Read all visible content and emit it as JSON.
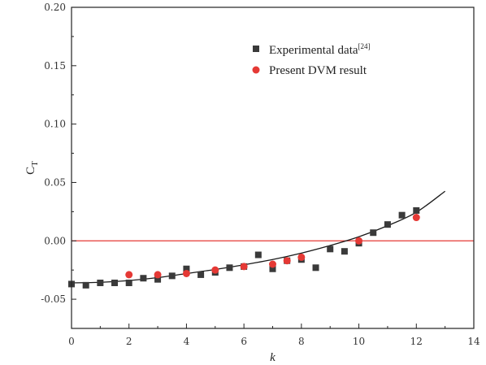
{
  "chart_data": {
    "type": "scatter",
    "title": "",
    "xlabel": "k",
    "ylabel": "C",
    "ylabel_sub": "T",
    "xlim": [
      0,
      14
    ],
    "ylim": [
      -0.075,
      0.2
    ],
    "xticks": [
      "0",
      "2",
      "4",
      "6",
      "8",
      "10",
      "12",
      "14"
    ],
    "yticks": [
      "-0.05",
      "0.00",
      "0.05",
      "0.10",
      "0.15",
      "0.20"
    ],
    "grid": false,
    "legend_position": "top-right",
    "reference_line": {
      "y": 0,
      "color": "#e53935"
    },
    "series": [
      {
        "name": "Experimental data",
        "name_sup": "[24]",
        "marker": "square",
        "color": "#3a3a3a",
        "points": [
          [
            0,
            -0.037
          ],
          [
            0.5,
            -0.038
          ],
          [
            1,
            -0.036
          ],
          [
            1.5,
            -0.036
          ],
          [
            2,
            -0.036
          ],
          [
            2.5,
            -0.032
          ],
          [
            3,
            -0.033
          ],
          [
            3.5,
            -0.03
          ],
          [
            4,
            -0.024
          ],
          [
            4.5,
            -0.029
          ],
          [
            5,
            -0.027
          ],
          [
            5.5,
            -0.023
          ],
          [
            6,
            -0.022
          ],
          [
            6.5,
            -0.012
          ],
          [
            7,
            -0.024
          ],
          [
            7.5,
            -0.017
          ],
          [
            8,
            -0.016
          ],
          [
            8.5,
            -0.023
          ],
          [
            9,
            -0.007
          ],
          [
            9.5,
            -0.009
          ],
          [
            10,
            -0.002
          ],
          [
            10.5,
            0.007
          ],
          [
            11,
            0.014
          ],
          [
            11.5,
            0.022
          ],
          [
            12,
            0.026
          ]
        ]
      },
      {
        "name": "Present DVM result",
        "marker": "circle",
        "color": "#e53935",
        "points": [
          [
            2,
            -0.029
          ],
          [
            3,
            -0.029
          ],
          [
            4,
            -0.028
          ],
          [
            5,
            -0.025
          ],
          [
            6,
            -0.022
          ],
          [
            7,
            -0.02
          ],
          [
            7.5,
            -0.017
          ],
          [
            8,
            -0.014
          ],
          [
            10,
            0.0
          ],
          [
            12,
            0.02
          ]
        ]
      },
      {
        "name": "",
        "marker": "none",
        "style": "line",
        "color": "#1a1a1a",
        "points": [
          [
            0,
            -0.036
          ],
          [
            1,
            -0.0355
          ],
          [
            2,
            -0.034
          ],
          [
            3,
            -0.0315
          ],
          [
            4,
            -0.028
          ],
          [
            5,
            -0.0245
          ],
          [
            6,
            -0.0205
          ],
          [
            7,
            -0.016
          ],
          [
            8,
            -0.0105
          ],
          [
            9,
            -0.004
          ],
          [
            10,
            0.0035
          ],
          [
            11,
            0.013
          ],
          [
            12,
            0.0245
          ],
          [
            13,
            0.0425
          ]
        ]
      }
    ]
  }
}
